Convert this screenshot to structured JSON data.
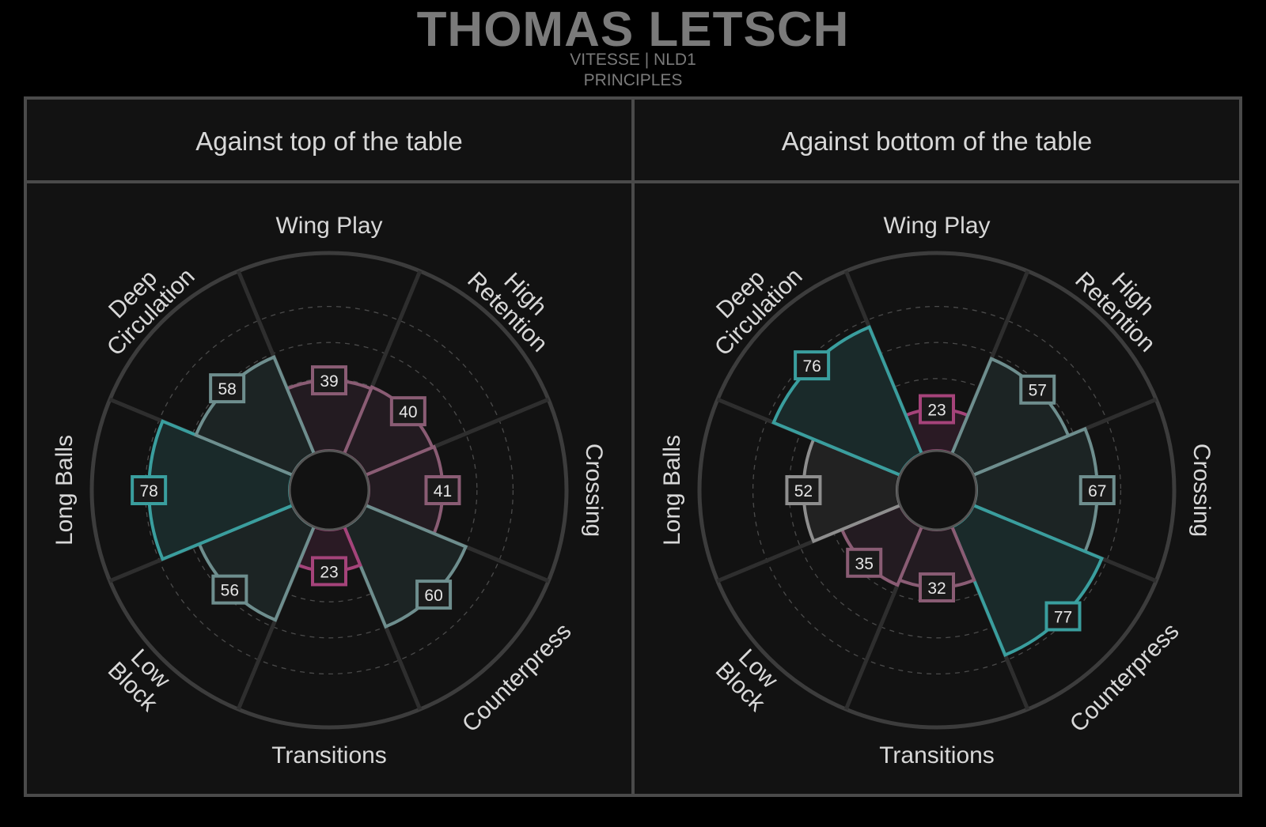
{
  "header": {
    "title": "THOMAS LETSCH",
    "subtitle_team": "VITESSE | NLD1",
    "subtitle_section": "PRINCIPLES"
  },
  "colors": {
    "background": "#000000",
    "panel": "#121212",
    "frame": "#4a4a4a",
    "teal": "#3a9e9e",
    "teal_fill": "#1a2a2a",
    "slate": "#6e8e8e",
    "slate_fill": "#1c2424",
    "grey": "#8e8e8e",
    "grey_fill": "#222222",
    "magenta": "#a5437a",
    "magenta_fill": "#2a1a24",
    "mauve": "#8a5c74",
    "mauve_fill": "#231b21",
    "text": "#d8d8d8"
  },
  "chart_data": [
    {
      "type": "polar-bar",
      "title": "Against top of the table",
      "categories": [
        "Wing Play",
        "High Retention",
        "Crossing",
        "Counterpress",
        "Transitions",
        "Low Block",
        "Long Balls",
        "Deep Circulation"
      ],
      "values": [
        39,
        40,
        41,
        60,
        23,
        56,
        78,
        58
      ],
      "styles": [
        "mauve",
        "mauve",
        "mauve",
        "slate",
        "magenta",
        "slate",
        "teal",
        "slate"
      ],
      "rlim": [
        0,
        100
      ],
      "grid": true
    },
    {
      "type": "polar-bar",
      "title": "Against bottom of the table",
      "categories": [
        "Wing Play",
        "High Retention",
        "Crossing",
        "Counterpress",
        "Transitions",
        "Low Block",
        "Long Balls",
        "Deep Circulation"
      ],
      "values": [
        23,
        57,
        67,
        77,
        32,
        35,
        52,
        76
      ],
      "styles": [
        "magenta",
        "slate",
        "slate",
        "teal",
        "mauve",
        "mauve",
        "grey",
        "teal"
      ],
      "rlim": [
        0,
        100
      ],
      "grid": true
    }
  ]
}
